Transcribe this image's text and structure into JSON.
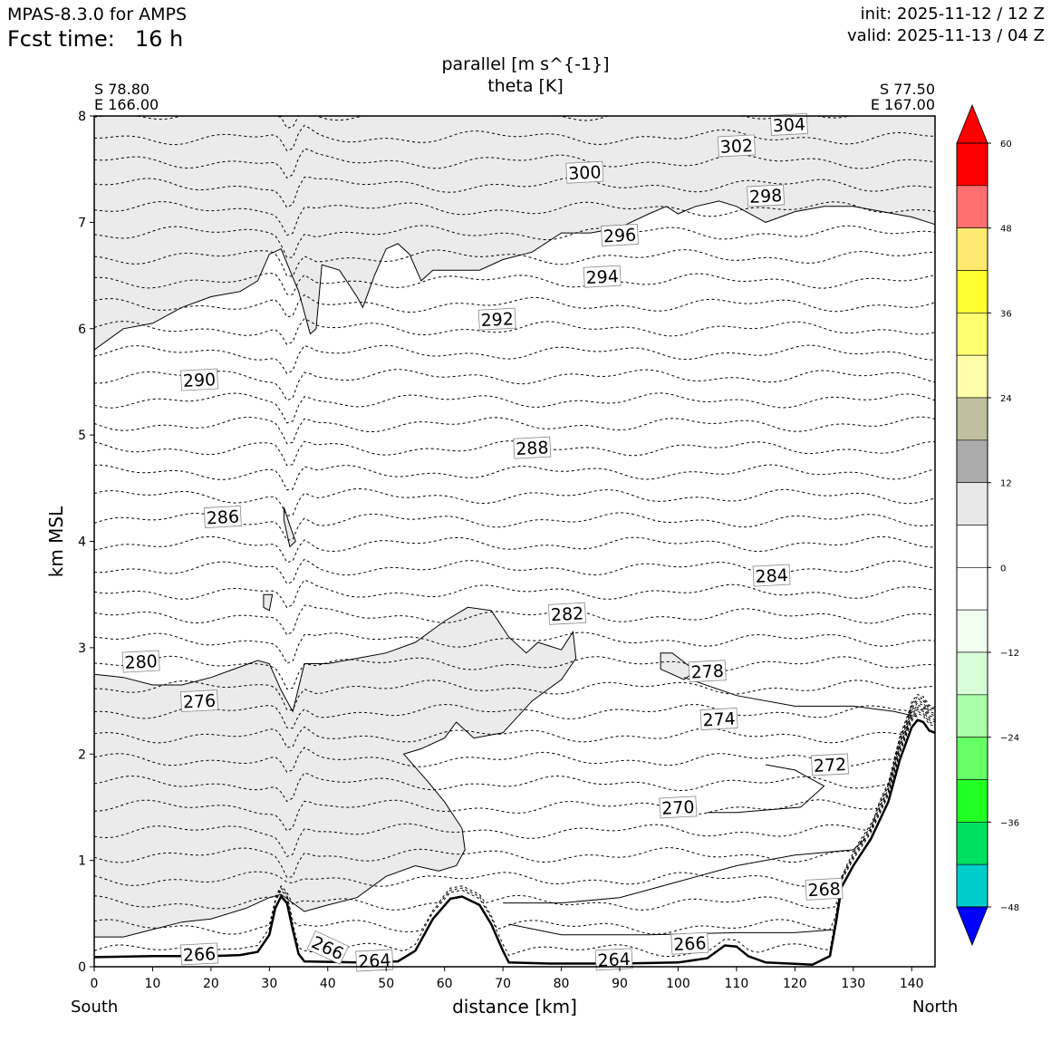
{
  "header": {
    "model": "MPAS-8.3.0 for AMPS",
    "fcst_label": "Fcst time:",
    "fcst_value": "16 h",
    "init": "init: 2025-11-12 / 12 Z",
    "valid": "valid: 2025-11-13 / 04 Z"
  },
  "chart_data": {
    "type": "contour-cross-section",
    "title_lines": [
      "parallel [m s^{-1}]",
      "theta [K]"
    ],
    "xlabel": "distance [km]",
    "ylabel": "km MSL",
    "xlim": [
      0,
      144
    ],
    "ylim": [
      0,
      8
    ],
    "xticks": [
      0,
      10,
      20,
      30,
      40,
      50,
      60,
      70,
      80,
      90,
      100,
      110,
      120,
      130,
      140
    ],
    "yticks": [
      0,
      1,
      2,
      3,
      4,
      5,
      6,
      7,
      8
    ],
    "endpoints": {
      "left": {
        "lat": "S 78.80",
        "lon": "E 166.00",
        "label": "South"
      },
      "right": {
        "lat": "S 77.50",
        "lon": "E 167.00",
        "label": "North"
      }
    },
    "theta_levels": [
      {
        "label": "304",
        "x": 119,
        "h": 7.92
      },
      {
        "label": "302",
        "x": 110,
        "h": 7.72
      },
      {
        "label": "300",
        "x": 84,
        "h": 7.47
      },
      {
        "label": "298",
        "x": 115,
        "h": 7.25
      },
      {
        "label": "296",
        "x": 90,
        "h": 6.88
      },
      {
        "label": "294",
        "x": 87,
        "h": 6.49
      },
      {
        "label": "292",
        "x": 69,
        "h": 6.09
      },
      {
        "label": "290",
        "x": 18,
        "h": 5.52
      },
      {
        "label": "288",
        "x": 75,
        "h": 4.88
      },
      {
        "label": "286",
        "x": 22,
        "h": 4.23
      },
      {
        "label": "284",
        "x": 116,
        "h": 3.68
      },
      {
        "label": "282",
        "x": 81,
        "h": 3.32
      },
      {
        "label": "280",
        "x": 8,
        "h": 2.87
      },
      {
        "label": "278",
        "x": 105,
        "h": 2.78
      },
      {
        "label": "276",
        "x": 18,
        "h": 2.5
      },
      {
        "label": "274",
        "x": 107,
        "h": 2.33
      },
      {
        "label": "272",
        "x": 126,
        "h": 1.9
      },
      {
        "label": "270",
        "x": 100,
        "h": 1.5
      },
      {
        "label": "268",
        "x": 125,
        "h": 0.73
      },
      {
        "label": "266",
        "x": 18,
        "h": 0.12
      },
      {
        "label": "266",
        "x": 40,
        "h": 0.18
      },
      {
        "label": "264",
        "x": 48,
        "h": 0.06
      },
      {
        "label": "266",
        "x": 102,
        "h": 0.22
      },
      {
        "label": "264",
        "x": 89,
        "h": 0.07
      }
    ],
    "colorbar": {
      "ticks": [
        "60",
        "48",
        "36",
        "24",
        "12",
        "0",
        "−12",
        "−24",
        "−36",
        "−48"
      ],
      "tick_values": [
        60,
        48,
        36,
        24,
        12,
        0,
        -12,
        -24,
        -36,
        -48
      ],
      "range": [
        -54,
        66
      ],
      "bins": [
        {
          "lo": 60,
          "hi": 66,
          "color": "#ff0000",
          "extend": "max"
        },
        {
          "lo": 54,
          "hi": 60,
          "color": "#ff0000"
        },
        {
          "lo": 48,
          "hi": 54,
          "color": "#ff7070"
        },
        {
          "lo": 42,
          "hi": 48,
          "color": "#ffe970"
        },
        {
          "lo": 36,
          "hi": 42,
          "color": "#ffff30"
        },
        {
          "lo": 30,
          "hi": 36,
          "color": "#ffff70"
        },
        {
          "lo": 24,
          "hi": 30,
          "color": "#ffffaa"
        },
        {
          "lo": 18,
          "hi": 24,
          "color": "#c0c0a0"
        },
        {
          "lo": 12,
          "hi": 18,
          "color": "#ababab"
        },
        {
          "lo": 6,
          "hi": 12,
          "color": "#e8e8e8"
        },
        {
          "lo": 0,
          "hi": 6,
          "color": "#ffffff"
        },
        {
          "lo": -6,
          "hi": 0,
          "color": "#ffffff"
        },
        {
          "lo": -12,
          "hi": -6,
          "color": "#f0fff0"
        },
        {
          "lo": -18,
          "hi": -12,
          "color": "#d8ffd8"
        },
        {
          "lo": -24,
          "hi": -18,
          "color": "#aaffaa"
        },
        {
          "lo": -30,
          "hi": -24,
          "color": "#66ff66"
        },
        {
          "lo": -36,
          "hi": -30,
          "color": "#22ff22"
        },
        {
          "lo": -42,
          "hi": -36,
          "color": "#00e060"
        },
        {
          "lo": -48,
          "hi": -42,
          "color": "#00cccc"
        },
        {
          "lo": -54,
          "hi": -48,
          "color": "#0000ff"
        },
        {
          "lo": -60,
          "hi": -54,
          "color": "#0000ff",
          "extend": "min"
        }
      ]
    },
    "shaded_region_color": "#ebebeb",
    "terrain": [
      [
        0,
        0.09
      ],
      [
        10,
        0.1
      ],
      [
        20,
        0.1
      ],
      [
        25,
        0.11
      ],
      [
        28,
        0.14
      ],
      [
        30,
        0.3
      ],
      [
        31,
        0.55
      ],
      [
        32,
        0.66
      ],
      [
        33,
        0.6
      ],
      [
        34,
        0.35
      ],
      [
        35,
        0.12
      ],
      [
        36,
        0.05
      ],
      [
        45,
        0.04
      ],
      [
        52,
        0.05
      ],
      [
        55,
        0.15
      ],
      [
        58,
        0.45
      ],
      [
        61,
        0.64
      ],
      [
        63,
        0.66
      ],
      [
        66,
        0.58
      ],
      [
        68,
        0.4
      ],
      [
        70,
        0.15
      ],
      [
        71,
        0.04
      ],
      [
        78,
        0.03
      ],
      [
        90,
        0.03
      ],
      [
        100,
        0.04
      ],
      [
        105,
        0.08
      ],
      [
        108,
        0.2
      ],
      [
        110,
        0.19
      ],
      [
        112,
        0.1
      ],
      [
        115,
        0.04
      ],
      [
        123,
        0.02
      ],
      [
        126,
        0.1
      ],
      [
        127,
        0.4
      ],
      [
        128,
        0.75
      ],
      [
        130,
        0.95
      ],
      [
        133,
        1.2
      ],
      [
        136,
        1.55
      ],
      [
        138,
        1.95
      ],
      [
        140,
        2.25
      ],
      [
        141,
        2.32
      ],
      [
        142,
        2.3
      ],
      [
        143,
        2.22
      ],
      [
        144,
        2.2
      ]
    ]
  }
}
